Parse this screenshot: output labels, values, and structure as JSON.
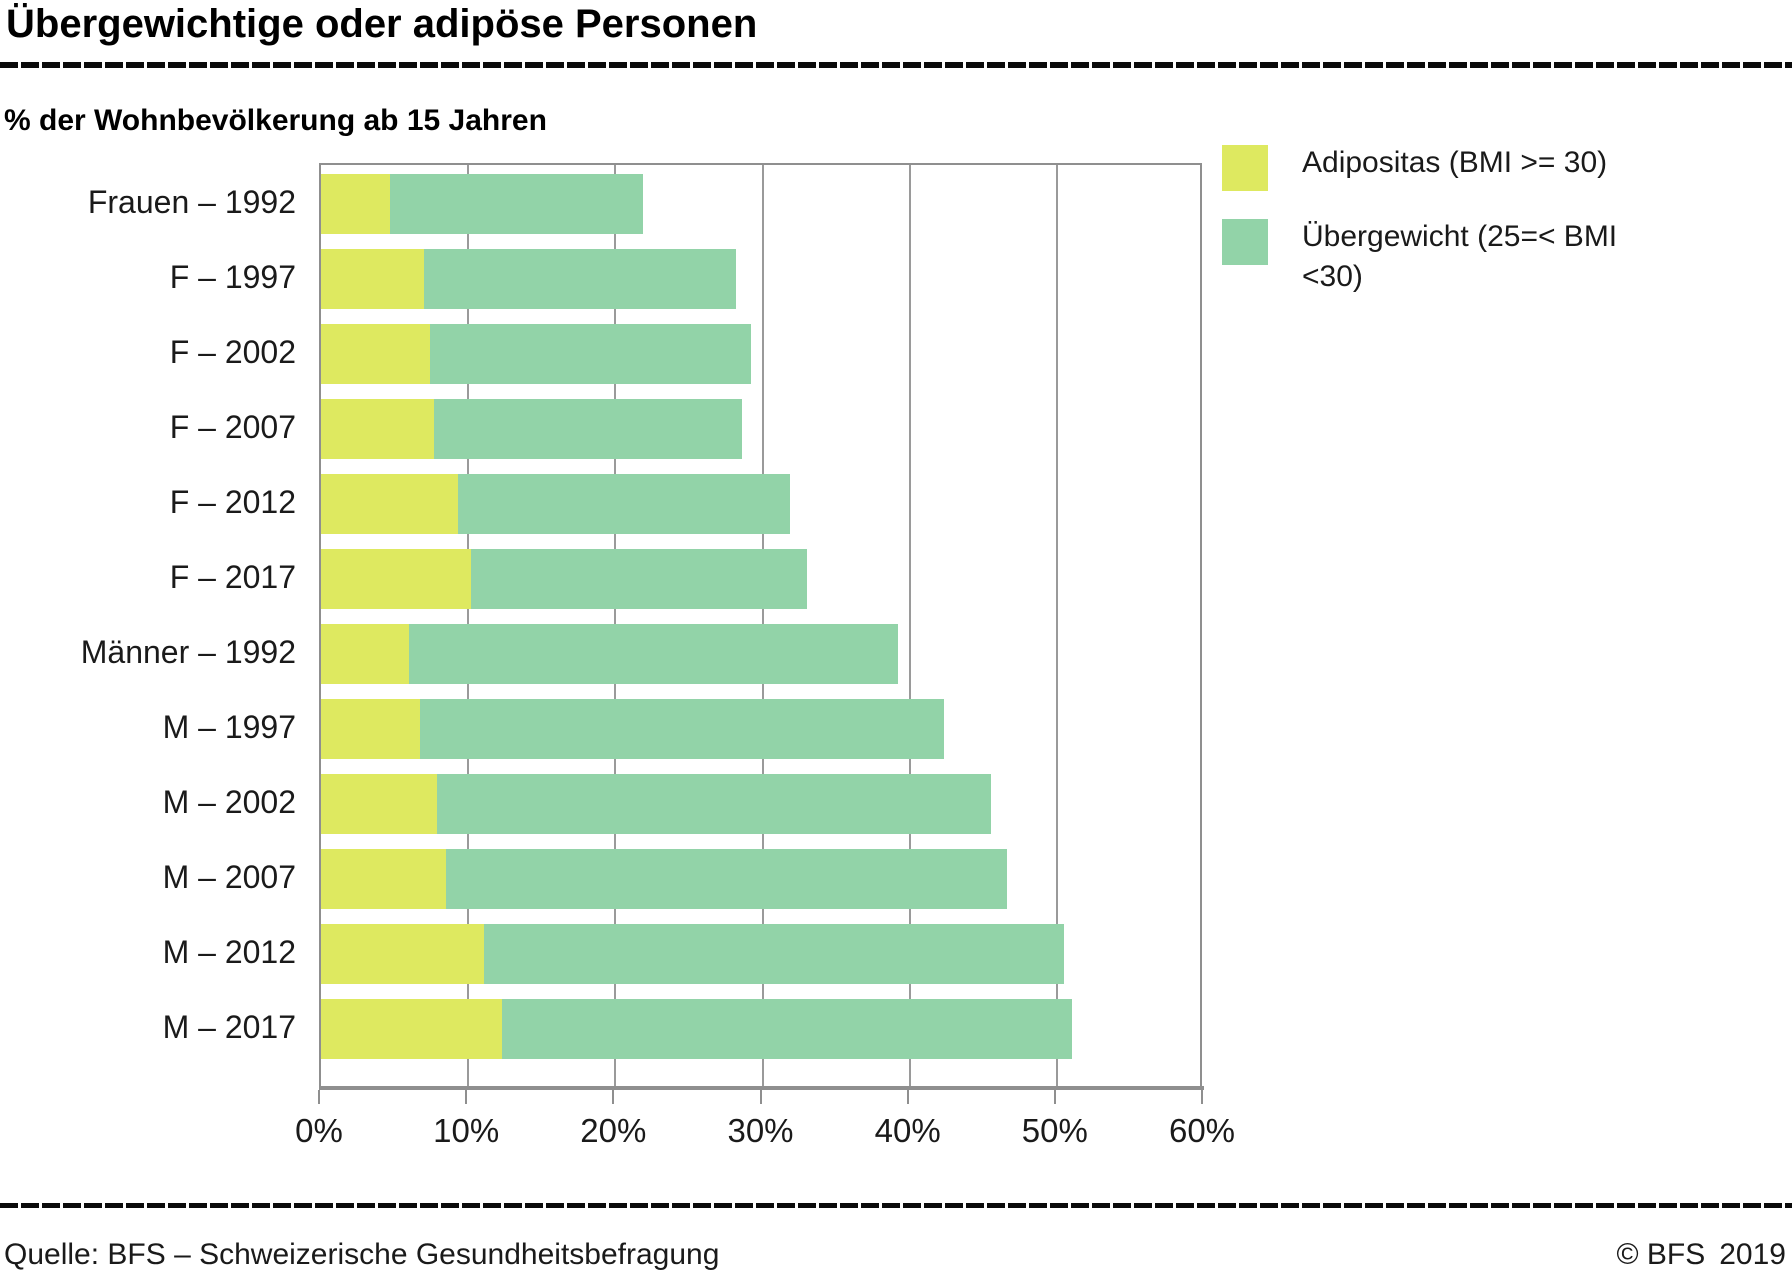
{
  "title": "Übergewichtige oder adipöse Personen",
  "subtitle": "% der Wohnbevölkerung ab 15 Jahren",
  "footer": {
    "source": "Quelle: BFS – Schweizerische Gesundheitsbefragung",
    "copyright": "© BFS",
    "year": "2019"
  },
  "colors": {
    "obesity": "#dee960",
    "overweight": "#92d3a8",
    "grid": "#9a9a9a",
    "axis": "#8f8f8f"
  },
  "legend": [
    {
      "label": "Adipositas (BMI >= 30)",
      "color": "#dee960"
    },
    {
      "label": "Übergewicht (25=< BMI <30)",
      "color": "#92d3a8"
    }
  ],
  "chart_data": {
    "type": "bar",
    "orientation": "horizontal",
    "stacked": true,
    "title": "Übergewichtige oder adipöse Personen",
    "xlabel": "% der Wohnbevölkerung ab 15 Jahren",
    "xlim": [
      0,
      60
    ],
    "x_ticks": [
      "0%",
      "10%",
      "20%",
      "30%",
      "40%",
      "50%",
      "60%"
    ],
    "grid": "vertical",
    "legend_position": "top-right",
    "categories": [
      "Frauen – 1992",
      "F – 1997",
      "F – 2002",
      "F – 2007",
      "F – 2012",
      "F – 2017",
      "Männer – 1992",
      "M – 1997",
      "M – 2002",
      "M – 2007",
      "M – 2012",
      "M – 2017"
    ],
    "series": [
      {
        "name": "Adipositas (BMI >= 30)",
        "values": [
          4.7,
          7.0,
          7.4,
          7.7,
          9.3,
          10.2,
          6.0,
          6.7,
          7.9,
          8.5,
          11.1,
          12.3
        ]
      },
      {
        "name": "Übergewicht (25=< BMI <30)",
        "values": [
          17.2,
          21.2,
          21.8,
          20.9,
          22.6,
          22.8,
          33.2,
          35.6,
          37.6,
          38.1,
          39.4,
          38.7
        ]
      }
    ],
    "totals": [
      21.9,
      28.2,
      29.2,
      28.6,
      31.9,
      33.0,
      39.2,
      42.3,
      45.5,
      46.6,
      50.5,
      51.0
    ]
  }
}
